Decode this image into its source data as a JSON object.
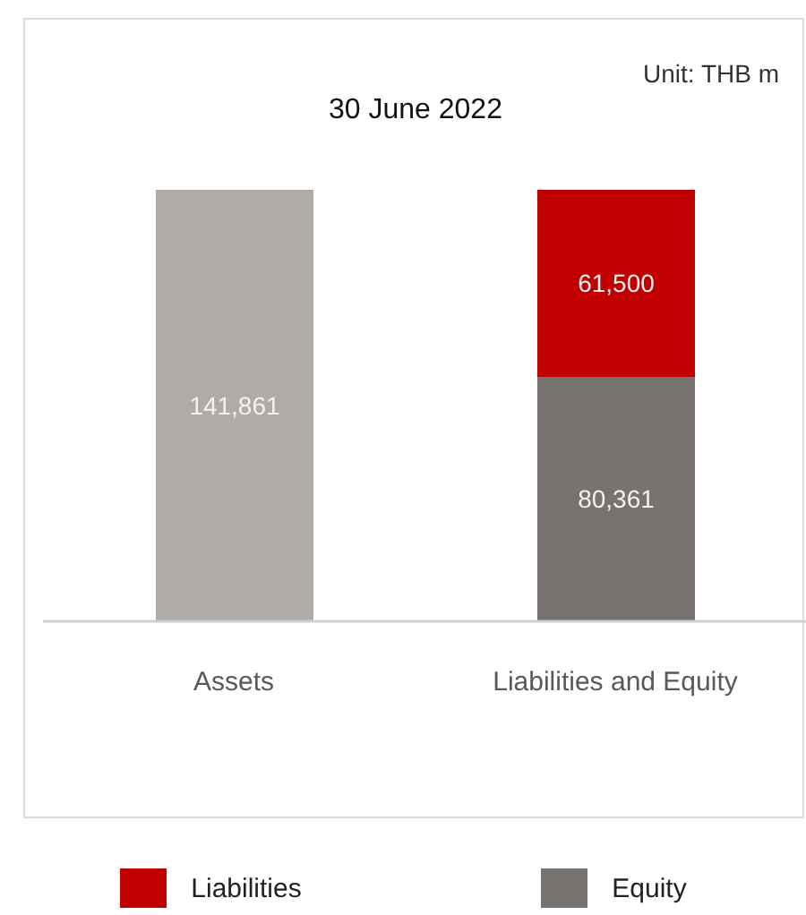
{
  "chart_data": {
    "type": "bar",
    "title": "30 June 2022",
    "annotations": [
      "Unit: THB m"
    ],
    "categories": [
      "Assets",
      "Liabilities and Equity"
    ],
    "stacked": true,
    "legend": "bottom",
    "grid": false,
    "tick_labels": "x",
    "series": [
      {
        "color": "#b0aba9",
        "values": [
          141861,
          null
        ],
        "value_labels": [
          "141,861",
          null
        ]
      },
      {
        "name": "Equity",
        "color": "#787371",
        "values": [
          null,
          80361
        ],
        "value_labels": [
          null,
          "80,361"
        ]
      },
      {
        "name": "Liabilities",
        "color": "#c00000",
        "values": [
          null,
          61500
        ],
        "value_labels": [
          null,
          "61,500"
        ]
      }
    ]
  }
}
